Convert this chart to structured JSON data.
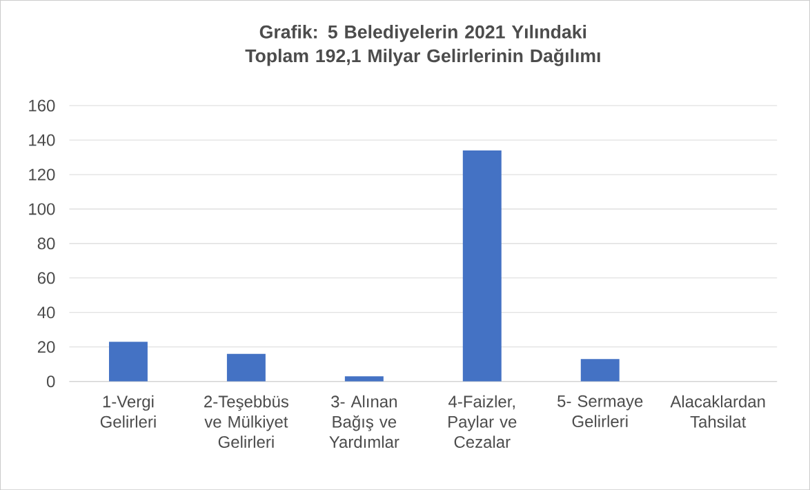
{
  "chart_data": {
    "type": "bar",
    "title": "Grafik: 5  Belediyelerin 2021 Yılındaki Toplam 192,1 Milyar Gelirlerinin Dağılımı",
    "categories": [
      "1-Vergi Gelirleri",
      "2-Teşebbüs ve Mülkiyet Gelirleri",
      "3- Alınan Bağış ve Yardımlar",
      "4-Faizler, Paylar ve Cezalar",
      "5- Sermaye Gelirleri",
      "Alacaklardan Tahsilat"
    ],
    "values": [
      23,
      16,
      3,
      134,
      13,
      0
    ],
    "color": "#4472c4",
    "ylim": [
      0,
      160
    ],
    "yticks": [
      0,
      20,
      40,
      60,
      80,
      100,
      120,
      140,
      160
    ],
    "grid": "y"
  }
}
